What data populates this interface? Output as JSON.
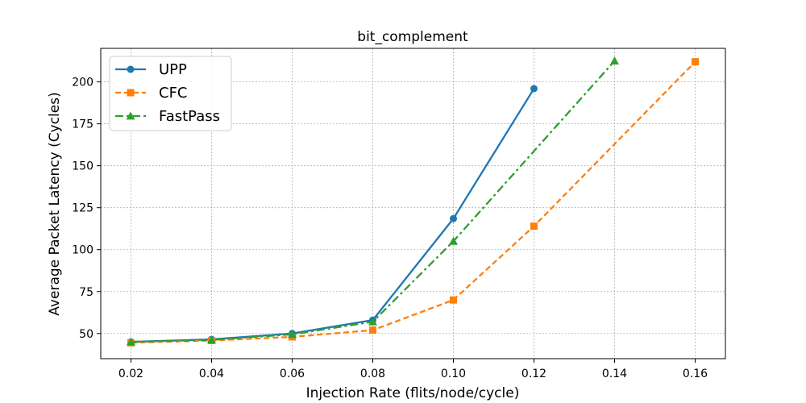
{
  "chart_data": {
    "type": "line",
    "title": "bit_complement",
    "xlabel": "Injection Rate (flits/node/cycle)",
    "ylabel": "Average Packet Latency (Cycles)",
    "xlim": [
      0.0125,
      0.1675
    ],
    "ylim": [
      35,
      220
    ],
    "xticks": [
      0.02,
      0.04,
      0.06,
      0.08,
      0.1,
      0.12,
      0.14,
      0.16
    ],
    "xtick_labels": [
      "0.02",
      "0.04",
      "0.06",
      "0.08",
      "0.10",
      "0.12",
      "0.14",
      "0.16"
    ],
    "yticks": [
      50,
      75,
      100,
      125,
      150,
      175,
      200
    ],
    "ytick_labels": [
      "50",
      "75",
      "100",
      "125",
      "150",
      "175",
      "200"
    ],
    "grid": true,
    "legend_position": "upper-left",
    "series": [
      {
        "name": "UPP",
        "color": "#1f77b4",
        "linestyle": "solid",
        "marker": "circle",
        "x": [
          0.02,
          0.04,
          0.06,
          0.08,
          0.1,
          0.12
        ],
        "y": [
          45,
          46.5,
          50,
          58,
          118.5,
          196
        ]
      },
      {
        "name": "CFC",
        "color": "#ff7f0e",
        "linestyle": "dashed",
        "marker": "square",
        "x": [
          0.02,
          0.04,
          0.06,
          0.08,
          0.1,
          0.12,
          0.16
        ],
        "y": [
          44.5,
          45.8,
          48,
          52,
          70,
          114,
          212
        ]
      },
      {
        "name": "FastPass",
        "color": "#2ca02c",
        "linestyle": "dashdot",
        "marker": "triangle",
        "x": [
          0.02,
          0.04,
          0.06,
          0.08,
          0.1,
          0.14
        ],
        "y": [
          45,
          46.2,
          49.5,
          57,
          105,
          212.5
        ]
      }
    ]
  }
}
